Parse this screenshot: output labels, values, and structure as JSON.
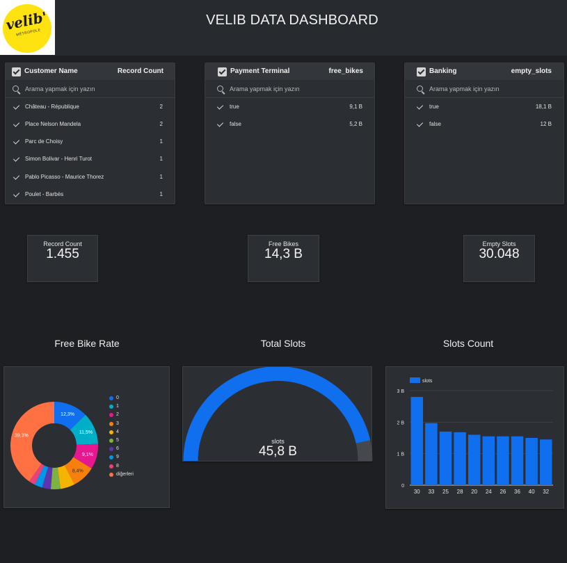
{
  "header": {
    "title": "VELIB DATA DASHBOARD",
    "logo_text": "velib'",
    "logo_subtext": "MÉTROPOLE"
  },
  "filters": [
    {
      "title": "Customer Name",
      "metric": "Record Count",
      "search_placeholder": "Arama yapmak için yazın",
      "rows": [
        {
          "label": "Château - République",
          "value": "2"
        },
        {
          "label": "Place Nelson Mandela",
          "value": "2"
        },
        {
          "label": "Parc de Choisy",
          "value": "1"
        },
        {
          "label": "Simon Bolivar - Henri Turot",
          "value": "1"
        },
        {
          "label": "Pablo Picasso - Maurice Thorez",
          "value": "1"
        },
        {
          "label": "Poulet - Barbès",
          "value": "1"
        }
      ]
    },
    {
      "title": "Payment Terminal",
      "metric": "free_bikes",
      "search_placeholder": "Arama yapmak için yazın",
      "rows": [
        {
          "label": "true",
          "value": "9,1 B"
        },
        {
          "label": "false",
          "value": "5,2 B"
        }
      ]
    },
    {
      "title": "Banking",
      "metric": "empty_slots",
      "search_placeholder": "Arama yapmak için yazın",
      "rows": [
        {
          "label": "true",
          "value": "18,1 B"
        },
        {
          "label": "false",
          "value": "12 B"
        }
      ]
    }
  ],
  "scorecards": [
    {
      "label": "Record Count",
      "value": "1.455"
    },
    {
      "label": "Free Bikes",
      "value": "14,3 B"
    },
    {
      "label": "Empty Slots",
      "value": "30.048"
    }
  ],
  "chart_titles": {
    "pie": "Free Bike Rate",
    "gauge": "Total Slots",
    "bar": "Slots Count"
  },
  "colors": {
    "primary": "#0f6fee",
    "card": "#2b2e33",
    "background": "#1e1f22"
  },
  "chart_data": [
    {
      "type": "pie",
      "donut": true,
      "categories": [
        "0",
        "1",
        "2",
        "3",
        "4",
        "5",
        "6",
        "9",
        "8",
        "diğerleri"
      ],
      "values": [
        12.3,
        11.5,
        9.1,
        8.4,
        5.2,
        3.5,
        3.1,
        2.9,
        2.2,
        39.3
      ],
      "data_labels": [
        "12,3%",
        "11,5%",
        "9,1%",
        "8,4%",
        "",
        "",
        "",
        "",
        "",
        "39,3%"
      ],
      "colors": [
        "#0f6fee",
        "#00aec8",
        "#e6178f",
        "#f7800c",
        "#f4b400",
        "#7cb342",
        "#5e35b1",
        "#0097e6",
        "#ec407a",
        "#ff7043"
      ],
      "legend_position": "right"
    },
    {
      "type": "gauge",
      "series_name": "slots",
      "value_label": "45,8 B",
      "fraction": 0.93,
      "colors": [
        "#0f6fee",
        "#45484d"
      ]
    },
    {
      "type": "bar",
      "series": [
        {
          "name": "slots",
          "values": [
            2.8,
            1.97,
            1.7,
            1.68,
            1.6,
            1.55,
            1.55,
            1.55,
            1.5,
            1.45
          ]
        }
      ],
      "categories": [
        "30",
        "33",
        "25",
        "28",
        "20",
        "24",
        "26",
        "36",
        "40",
        "32"
      ],
      "y_ticks": [
        "0",
        "1 B",
        "2 B",
        "3 B"
      ],
      "ylim": [
        0,
        3
      ],
      "grid": true,
      "legend_position": "top-left",
      "colors": [
        "#0f6fee"
      ]
    }
  ]
}
